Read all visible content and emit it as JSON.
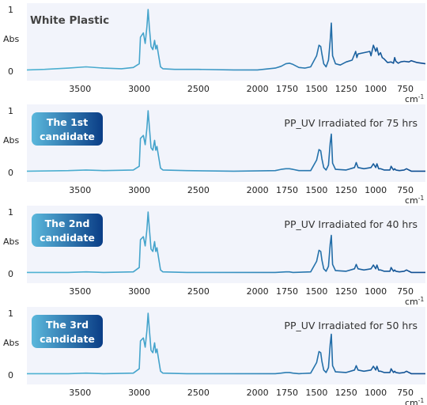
{
  "chart_data": [
    {
      "type": "line",
      "title": "White Plastic",
      "ylabel": "Abs",
      "xlabel": "cm-1",
      "x_unit_base": "cm",
      "x_unit_exp": "-1",
      "xlim": [
        3950,
        580
      ],
      "ylim": [
        0,
        1
      ],
      "x_ticks": [
        3500,
        3000,
        2500,
        2000,
        1750,
        1500,
        1250,
        1000,
        750
      ],
      "y_ticks": [
        0,
        1
      ],
      "x": [
        3950,
        3800,
        3600,
        3450,
        3300,
        3150,
        3050,
        3000,
        2990,
        2965,
        2950,
        2935,
        2925,
        2915,
        2900,
        2885,
        2870,
        2860,
        2850,
        2840,
        2820,
        2800,
        2700,
        2500,
        2200,
        2000,
        1850,
        1800,
        1760,
        1730,
        1700,
        1650,
        1600,
        1550,
        1500,
        1480,
        1465,
        1455,
        1440,
        1420,
        1400,
        1385,
        1376,
        1365,
        1340,
        1300,
        1250,
        1200,
        1170,
        1160,
        1150,
        1100,
        1050,
        1040,
        1020,
        1000,
        990,
        975,
        960,
        945,
        930,
        900,
        870,
        850,
        840,
        830,
        810,
        790,
        760,
        720,
        700,
        650,
        580
      ],
      "y": [
        0.02,
        0.03,
        0.05,
        0.07,
        0.05,
        0.04,
        0.06,
        0.12,
        0.55,
        0.62,
        0.45,
        0.72,
        1.0,
        0.72,
        0.4,
        0.35,
        0.5,
        0.36,
        0.42,
        0.3,
        0.07,
        0.04,
        0.03,
        0.03,
        0.02,
        0.02,
        0.05,
        0.08,
        0.12,
        0.13,
        0.11,
        0.06,
        0.05,
        0.07,
        0.25,
        0.42,
        0.4,
        0.28,
        0.12,
        0.07,
        0.18,
        0.5,
        0.78,
        0.25,
        0.12,
        0.1,
        0.15,
        0.18,
        0.32,
        0.22,
        0.28,
        0.3,
        0.32,
        0.25,
        0.42,
        0.32,
        0.38,
        0.26,
        0.3,
        0.22,
        0.2,
        0.14,
        0.15,
        0.13,
        0.22,
        0.16,
        0.13,
        0.15,
        0.16,
        0.15,
        0.17,
        0.14,
        0.12
      ],
      "condition": "",
      "badge_line1": "",
      "badge_line2": "",
      "grid": false
    },
    {
      "type": "line",
      "title": "",
      "ylabel": "Abs",
      "xlabel": "cm-1",
      "x_unit_base": "cm",
      "x_unit_exp": "-1",
      "xlim": [
        3950,
        580
      ],
      "ylim": [
        0,
        1
      ],
      "x_ticks": [
        3500,
        3000,
        2500,
        2000,
        1750,
        1500,
        1250,
        1000,
        750
      ],
      "y_ticks": [
        0,
        1
      ],
      "x": [
        3950,
        3600,
        3450,
        3300,
        3050,
        3000,
        2990,
        2965,
        2950,
        2935,
        2925,
        2915,
        2900,
        2885,
        2870,
        2860,
        2850,
        2840,
        2820,
        2800,
        2600,
        2200,
        1850,
        1800,
        1760,
        1730,
        1700,
        1650,
        1550,
        1500,
        1480,
        1465,
        1455,
        1440,
        1420,
        1400,
        1385,
        1376,
        1365,
        1340,
        1250,
        1180,
        1165,
        1150,
        1100,
        1040,
        1020,
        1000,
        990,
        975,
        960,
        930,
        880,
        870,
        850,
        840,
        830,
        800,
        760,
        740,
        720,
        700,
        580
      ],
      "y": [
        0.02,
        0.03,
        0.04,
        0.03,
        0.04,
        0.1,
        0.55,
        0.6,
        0.45,
        0.72,
        1.0,
        0.75,
        0.4,
        0.36,
        0.52,
        0.36,
        0.42,
        0.3,
        0.07,
        0.04,
        0.03,
        0.02,
        0.03,
        0.05,
        0.06,
        0.06,
        0.05,
        0.03,
        0.03,
        0.2,
        0.37,
        0.35,
        0.22,
        0.08,
        0.04,
        0.12,
        0.48,
        0.62,
        0.15,
        0.05,
        0.04,
        0.08,
        0.16,
        0.08,
        0.06,
        0.08,
        0.14,
        0.08,
        0.14,
        0.06,
        0.06,
        0.04,
        0.04,
        0.1,
        0.04,
        0.06,
        0.04,
        0.03,
        0.04,
        0.06,
        0.04,
        0.02,
        0.02
      ],
      "condition": "PP_UV Irradiated for 75 hrs",
      "badge_line1": "The 1st",
      "badge_line2": "candidate",
      "grid": false
    },
    {
      "type": "line",
      "title": "",
      "ylabel": "Abs",
      "xlabel": "cm-1",
      "x_unit_base": "cm",
      "x_unit_exp": "-1",
      "xlim": [
        3950,
        580
      ],
      "ylim": [
        0,
        1
      ],
      "x_ticks": [
        3500,
        3000,
        2500,
        2000,
        1750,
        1500,
        1250,
        1000,
        750
      ],
      "y_ticks": [
        0,
        1
      ],
      "x": [
        3950,
        3600,
        3450,
        3300,
        3050,
        3000,
        2990,
        2965,
        2950,
        2935,
        2925,
        2915,
        2900,
        2885,
        2870,
        2860,
        2850,
        2840,
        2820,
        2800,
        2600,
        2200,
        1850,
        1760,
        1730,
        1700,
        1550,
        1500,
        1480,
        1465,
        1455,
        1440,
        1420,
        1400,
        1385,
        1376,
        1365,
        1340,
        1250,
        1180,
        1165,
        1150,
        1100,
        1040,
        1020,
        1000,
        990,
        975,
        960,
        930,
        880,
        870,
        850,
        840,
        830,
        800,
        760,
        740,
        720,
        700,
        580
      ],
      "y": [
        0.02,
        0.02,
        0.03,
        0.02,
        0.03,
        0.1,
        0.55,
        0.6,
        0.45,
        0.72,
        1.0,
        0.75,
        0.4,
        0.36,
        0.52,
        0.36,
        0.42,
        0.3,
        0.06,
        0.03,
        0.02,
        0.02,
        0.02,
        0.03,
        0.03,
        0.02,
        0.03,
        0.2,
        0.38,
        0.36,
        0.22,
        0.08,
        0.04,
        0.12,
        0.48,
        0.62,
        0.15,
        0.05,
        0.04,
        0.08,
        0.15,
        0.08,
        0.06,
        0.08,
        0.14,
        0.08,
        0.14,
        0.06,
        0.06,
        0.04,
        0.04,
        0.1,
        0.04,
        0.06,
        0.04,
        0.03,
        0.04,
        0.06,
        0.04,
        0.02,
        0.02
      ],
      "condition": "PP_UV Irradiated for 40 hrs",
      "badge_line1": "The 2nd",
      "badge_line2": "candidate",
      "grid": false
    },
    {
      "type": "line",
      "title": "",
      "ylabel": "Abs",
      "xlabel": "cm-1",
      "x_unit_base": "cm",
      "x_unit_exp": "-1",
      "xlim": [
        3950,
        580
      ],
      "ylim": [
        0,
        1
      ],
      "x_ticks": [
        3500,
        3000,
        2500,
        2000,
        1750,
        1500,
        1250,
        1000,
        750
      ],
      "y_ticks": [
        0,
        1
      ],
      "x": [
        3950,
        3600,
        3450,
        3300,
        3050,
        3000,
        2990,
        2965,
        2950,
        2935,
        2925,
        2915,
        2900,
        2885,
        2870,
        2860,
        2850,
        2840,
        2820,
        2800,
        2600,
        2200,
        1850,
        1800,
        1760,
        1730,
        1700,
        1650,
        1550,
        1500,
        1480,
        1465,
        1455,
        1440,
        1420,
        1400,
        1385,
        1376,
        1365,
        1340,
        1250,
        1180,
        1165,
        1150,
        1100,
        1040,
        1020,
        1000,
        990,
        975,
        960,
        930,
        880,
        870,
        850,
        840,
        830,
        800,
        760,
        740,
        720,
        700,
        580
      ],
      "y": [
        0.02,
        0.02,
        0.03,
        0.02,
        0.03,
        0.1,
        0.55,
        0.6,
        0.45,
        0.72,
        1.0,
        0.75,
        0.4,
        0.36,
        0.52,
        0.36,
        0.42,
        0.3,
        0.06,
        0.03,
        0.02,
        0.02,
        0.02,
        0.03,
        0.04,
        0.04,
        0.03,
        0.02,
        0.03,
        0.2,
        0.38,
        0.36,
        0.22,
        0.08,
        0.04,
        0.12,
        0.5,
        0.66,
        0.15,
        0.05,
        0.04,
        0.08,
        0.15,
        0.08,
        0.06,
        0.08,
        0.14,
        0.08,
        0.14,
        0.06,
        0.06,
        0.04,
        0.04,
        0.1,
        0.04,
        0.06,
        0.04,
        0.03,
        0.04,
        0.06,
        0.04,
        0.02,
        0.02
      ],
      "condition": "PP_UV Irradiated for 50 hrs",
      "badge_line1": "The 3rd",
      "badge_line2": "candidate",
      "grid": false
    }
  ],
  "colors": {
    "panel_bg": "#f2f4fb",
    "line_start": "#4fb3d2",
    "line_end": "#0d4a8f",
    "badge_start": "#5bb8dc",
    "badge_end": "#0a3d86"
  }
}
